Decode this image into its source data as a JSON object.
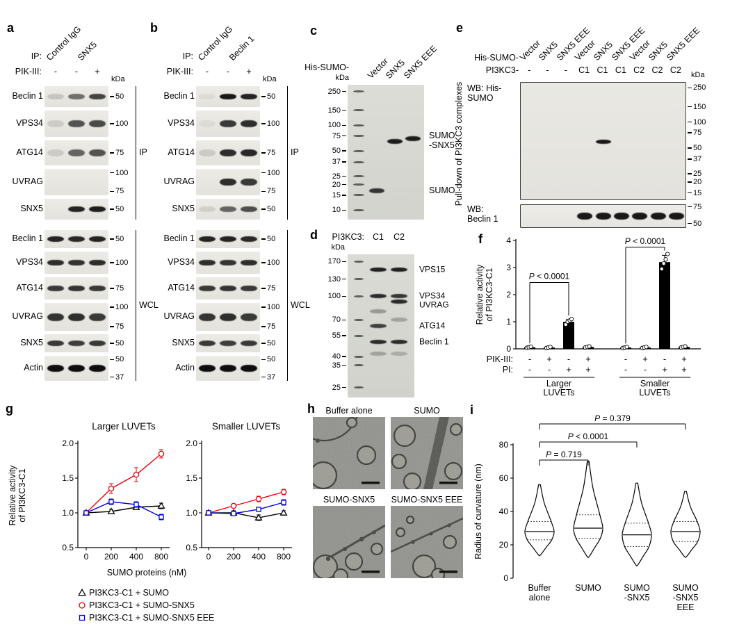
{
  "colors": {
    "red": "#e8000d",
    "blue": "#0000e8",
    "black": "#000000",
    "bar_fill": "#000000"
  },
  "panel_a": {
    "label": "a",
    "ip_prefix": "IP:",
    "lane_labels": [
      "Control IgG",
      "SNX5"
    ],
    "treatment_label": "PIK-III:",
    "treatment_values": [
      "-",
      "-",
      "+"
    ],
    "kda_label": "kDa",
    "sections": [
      {
        "name": "IP",
        "rows": [
          {
            "protein": "Beclin 1",
            "markers": [
              "50"
            ],
            "bands": [
              0.15,
              0.55,
              0.75
            ]
          },
          {
            "protein": "VPS34",
            "markers": [
              "100"
            ],
            "bands": [
              0.12,
              0.68,
              0.72
            ]
          },
          {
            "protein": "ATG14",
            "markers": [
              "75"
            ],
            "bands": [
              0.12,
              0.6,
              0.68
            ]
          },
          {
            "protein": "UVRAG",
            "markers": [
              "100",
              "75"
            ],
            "bands": [
              0,
              0,
              0
            ]
          },
          {
            "protein": "SNX5",
            "markers": [
              "50"
            ],
            "bands": [
              0,
              0.9,
              0.92
            ]
          }
        ]
      },
      {
        "name": "WCL",
        "rows": [
          {
            "protein": "Beclin 1",
            "markers": [
              "50"
            ],
            "bands": [
              0.9,
              0.88,
              0.9
            ]
          },
          {
            "protein": "VPS34",
            "markers": [
              "100"
            ],
            "bands": [
              0.85,
              0.83,
              0.85
            ]
          },
          {
            "protein": "ATG14",
            "markers": [
              "75"
            ],
            "bands": [
              0.8,
              0.82,
              0.8
            ]
          },
          {
            "protein": "UVRAG",
            "markers": [
              "100",
              "75"
            ],
            "bands": [
              0.82,
              0.85,
              0.8
            ]
          },
          {
            "protein": "SNX5",
            "markers": [
              "50"
            ],
            "bands": [
              0.8,
              0.78,
              0.8
            ]
          },
          {
            "protein": "Actin",
            "markers": [
              "50",
              "37"
            ],
            "bands": [
              1,
              1,
              1
            ]
          }
        ]
      }
    ]
  },
  "panel_b": {
    "label": "b",
    "ip_prefix": "IP:",
    "lane_labels": [
      "Control IgG",
      "Beclin 1"
    ],
    "treatment_label": "PIK-III:",
    "treatment_values": [
      "-",
      "-",
      "+"
    ],
    "kda_label": "kDa",
    "sections": [
      {
        "name": "IP",
        "rows": [
          {
            "protein": "Beclin 1",
            "markers": [
              "50"
            ],
            "bands": [
              0.05,
              0.95,
              0.9
            ]
          },
          {
            "protein": "VPS34",
            "markers": [
              "100"
            ],
            "bands": [
              0.05,
              0.8,
              0.85
            ]
          },
          {
            "protein": "ATG14",
            "markers": [
              "75"
            ],
            "bands": [
              0.12,
              0.85,
              0.88
            ]
          },
          {
            "protein": "UVRAG",
            "markers": [
              "100",
              "75"
            ],
            "bands": [
              0,
              0.85,
              0.8
            ]
          },
          {
            "protein": "SNX5",
            "markers": [
              "50"
            ],
            "bands": [
              0.1,
              0.6,
              0.7
            ]
          }
        ]
      },
      {
        "name": "WCL",
        "rows": [
          {
            "protein": "Beclin 1",
            "markers": [
              "50"
            ],
            "bands": [
              0.9,
              0.9,
              0.88
            ]
          },
          {
            "protein": "VPS34",
            "markers": [
              "100"
            ],
            "bands": [
              0.85,
              0.82,
              0.85
            ]
          },
          {
            "protein": "ATG14",
            "markers": [
              "75"
            ],
            "bands": [
              0.8,
              0.82,
              0.8
            ]
          },
          {
            "protein": "UVRAG",
            "markers": [
              "100",
              "75"
            ],
            "bands": [
              0.82,
              0.85,
              0.8
            ]
          },
          {
            "protein": "SNX5",
            "markers": [
              "50"
            ],
            "bands": [
              0.8,
              0.78,
              0.8
            ]
          },
          {
            "protein": "Actin",
            "markers": [
              "50",
              "37"
            ],
            "bands": [
              1,
              1,
              1
            ]
          }
        ]
      }
    ]
  },
  "panel_c": {
    "label": "c",
    "header": "His-SUMO-",
    "lane_labels": [
      "Vector",
      "SNX5",
      "SNX5 EEE"
    ],
    "kda_label": "kDa",
    "ladder_kda": [
      250,
      150,
      100,
      75,
      50,
      37,
      25,
      20,
      15,
      10
    ],
    "bands": [
      {
        "lane": 0,
        "kda": 17,
        "intensity": 0.8
      },
      {
        "lane": 1,
        "kda": 64,
        "intensity": 0.92
      },
      {
        "lane": 2,
        "kda": 70,
        "intensity": 0.92
      }
    ],
    "annotations": [
      {
        "text": "SUMO\n-SNX5",
        "kda": 67
      },
      {
        "text": "SUMO",
        "kda": 17
      }
    ]
  },
  "panel_d": {
    "label": "d",
    "header": "PI3KC3:",
    "lane_labels": [
      "C1",
      "C2"
    ],
    "kda_label": "kDa",
    "ladder_kda": [
      170,
      130,
      100,
      70,
      55,
      40,
      35,
      25
    ],
    "bands": [
      {
        "lane": 0,
        "kda": 150,
        "intensity": 0.9
      },
      {
        "lane": 0,
        "kda": 100,
        "intensity": 0.85
      },
      {
        "lane": 0,
        "kda": 64,
        "intensity": 0.75
      },
      {
        "lane": 0,
        "kda": 50,
        "intensity": 0.85
      },
      {
        "lane": 0,
        "kda": 80,
        "intensity": 0.3
      },
      {
        "lane": 0,
        "kda": 42,
        "intensity": 0.25
      },
      {
        "lane": 1,
        "kda": 150,
        "intensity": 0.9
      },
      {
        "lane": 1,
        "kda": 100,
        "intensity": 0.8
      },
      {
        "lane": 1,
        "kda": 92,
        "intensity": 0.85
      },
      {
        "lane": 1,
        "kda": 50,
        "intensity": 0.85
      },
      {
        "lane": 1,
        "kda": 70,
        "intensity": 0.25
      },
      {
        "lane": 1,
        "kda": 42,
        "intensity": 0.2
      }
    ],
    "band_labels": [
      {
        "text": "VPS15",
        "kda": 150
      },
      {
        "text": "VPS34",
        "kda": 100
      },
      {
        "text": "UVRAG",
        "kda": 88
      },
      {
        "text": "ATG14",
        "kda": 64
      },
      {
        "text": "Beclin 1",
        "kda": 50
      }
    ]
  },
  "panel_e": {
    "label": "e",
    "side_label": "Pull-down of PI3KC3 complexes",
    "header1": "His-SUMO-",
    "header2": "PI3KC3-",
    "lane_labels": [
      "Vector",
      "SNX5",
      "SNX5 EEE",
      "Vector",
      "SNX5",
      "SNX5 EEE",
      "Vector",
      "SNX5",
      "SNX5 EEE"
    ],
    "pi3kc3_values": [
      "-",
      "-",
      "-",
      "C1",
      "C1",
      "C1",
      "C2",
      "C2",
      "C2"
    ],
    "kda_label": "kDa",
    "blot1": {
      "label": "WB: His-\nSUMO",
      "markers": [
        250,
        150,
        100,
        75,
        50,
        37,
        25,
        20,
        15
      ],
      "bands": [
        {
          "lane": 4,
          "kda": 60,
          "intensity": 0.95
        }
      ]
    },
    "blot2": {
      "label": "WB:\nBeclin 1",
      "markers": [
        75,
        50
      ],
      "band_lanes": [
        3,
        4,
        5,
        6,
        7,
        8
      ]
    }
  },
  "panel_f": {
    "label": "f"
  },
  "panel_g": {
    "label": "g",
    "xlabel": "SUMO proteins (nM)",
    "ylabel": "Relative activity\nof PI3KC3-C1"
  },
  "panel_h": {
    "label": "h",
    "tiles": [
      "Buffer alone",
      "SUMO",
      "SUMO-SNX5",
      "SUMO-SNX5 EEE"
    ]
  },
  "panel_i": {
    "label": "i"
  },
  "chart_data": [
    {
      "id": "f",
      "type": "bar",
      "ylabel": "Relative activity\nof PI3KC3-C1",
      "ylim": [
        0,
        4
      ],
      "yticks": [
        0,
        1,
        2,
        3,
        4
      ],
      "row_labels": [
        "PIK-III:",
        "PI:"
      ],
      "pik_values": [
        "-",
        "+",
        "-",
        "+",
        "-",
        "+",
        "-",
        "+"
      ],
      "pi_values": [
        "-",
        "-",
        "+",
        "+",
        "-",
        "-",
        "+",
        "+"
      ],
      "values": [
        0.06,
        0.05,
        1.0,
        0.07,
        0.05,
        0.05,
        3.2,
        0.07
      ],
      "points": [
        [
          0.04,
          0.06,
          0.08
        ],
        [
          0.03,
          0.05,
          0.07
        ],
        [
          0.9,
          1.0,
          1.05,
          1.1
        ],
        [
          0.05,
          0.07,
          0.09
        ],
        [
          0.03,
          0.05,
          0.07
        ],
        [
          0.03,
          0.05,
          0.07
        ],
        [
          2.95,
          3.15,
          3.3,
          3.5
        ],
        [
          0.05,
          0.07,
          0.09
        ]
      ],
      "errors": [
        0,
        0,
        0.08,
        0,
        0,
        0,
        0.25,
        0
      ],
      "groups": [
        {
          "label": "Larger\nLUVETs",
          "from": 0,
          "to": 3
        },
        {
          "label": "Smaller\nLUVETs",
          "from": 4,
          "to": 7
        }
      ],
      "sig": [
        {
          "text": "P < 0.0001",
          "from": 0,
          "to": 2,
          "y": 2.45
        },
        {
          "text": "P < 0.0001",
          "from": 4,
          "to": 6,
          "y": 3.75
        }
      ]
    },
    {
      "id": "g_larger",
      "type": "line",
      "title": "Larger LUVETs",
      "x": [
        0,
        200,
        400,
        800
      ],
      "ylim": [
        0.5,
        2.0
      ],
      "yticks": [
        0.5,
        1.0,
        1.5,
        2.0
      ],
      "series": [
        {
          "name": "PI3KC3-C1 + SUMO",
          "marker": "triangle",
          "color": "#000000",
          "values": [
            1.0,
            1.02,
            1.08,
            1.1
          ],
          "err": [
            0.02,
            0.03,
            0.03,
            0.04
          ]
        },
        {
          "name": "PI3KC3-C1 + SUMO-SNX5",
          "marker": "circle",
          "color": "#e8000d",
          "values": [
            1.0,
            1.35,
            1.55,
            1.85
          ],
          "err": [
            0.02,
            0.07,
            0.1,
            0.06
          ]
        },
        {
          "name": "PI3KC3-C1 + SUMO-SNX5 EEE",
          "marker": "square",
          "color": "#0000e8",
          "values": [
            1.0,
            1.16,
            1.12,
            0.94
          ],
          "err": [
            0.02,
            0.04,
            0.04,
            0.04
          ]
        }
      ]
    },
    {
      "id": "g_smaller",
      "type": "line",
      "title": "Smaller LUVETs",
      "x": [
        0,
        200,
        400,
        800
      ],
      "ylim": [
        0.5,
        2.0
      ],
      "yticks": [
        0.5,
        1.0,
        1.5,
        2.0
      ],
      "series": [
        {
          "name": "PI3KC3-C1 + SUMO",
          "marker": "triangle",
          "color": "#000000",
          "values": [
            1.0,
            1.0,
            0.93,
            1.0
          ],
          "err": [
            0.02,
            0.03,
            0.04,
            0.03
          ]
        },
        {
          "name": "PI3KC3-C1 + SUMO-SNX5",
          "marker": "circle",
          "color": "#e8000d",
          "values": [
            1.0,
            1.1,
            1.2,
            1.3
          ],
          "err": [
            0.02,
            0.03,
            0.04,
            0.04
          ]
        },
        {
          "name": "PI3KC3-C1 + SUMO-SNX5 EEE",
          "marker": "square",
          "color": "#0000e8",
          "values": [
            1.0,
            0.99,
            1.05,
            1.15
          ],
          "err": [
            0.02,
            0.03,
            0.03,
            0.04
          ]
        }
      ]
    },
    {
      "id": "i",
      "type": "violin",
      "ylabel": "Radius of curvature (nm)",
      "ylim": [
        0,
        80
      ],
      "yticks": [
        0,
        20,
        40,
        60,
        80
      ],
      "categories": [
        [
          "Buffer",
          "alone"
        ],
        [
          "SUMO"
        ],
        [
          "SUMO",
          "-SNX5"
        ],
        [
          "SUMO",
          "-SNX5",
          "EEE"
        ]
      ],
      "violins": [
        {
          "min": 14,
          "q1": 23,
          "median": 28,
          "q3": 34,
          "max": 56
        },
        {
          "min": 13,
          "q1": 24,
          "median": 30,
          "q3": 38,
          "max": 70
        },
        {
          "min": 8,
          "q1": 19,
          "median": 26,
          "q3": 33,
          "max": 57
        },
        {
          "min": 13,
          "q1": 22,
          "median": 28,
          "q3": 34,
          "max": 52
        }
      ],
      "sig": [
        {
          "text": "P = 0.719",
          "from": 0,
          "to": 1
        },
        {
          "text": "P < 0.0001",
          "from": 0,
          "to": 2
        },
        {
          "text": "P = 0.379",
          "from": 0,
          "to": 3
        }
      ]
    }
  ]
}
